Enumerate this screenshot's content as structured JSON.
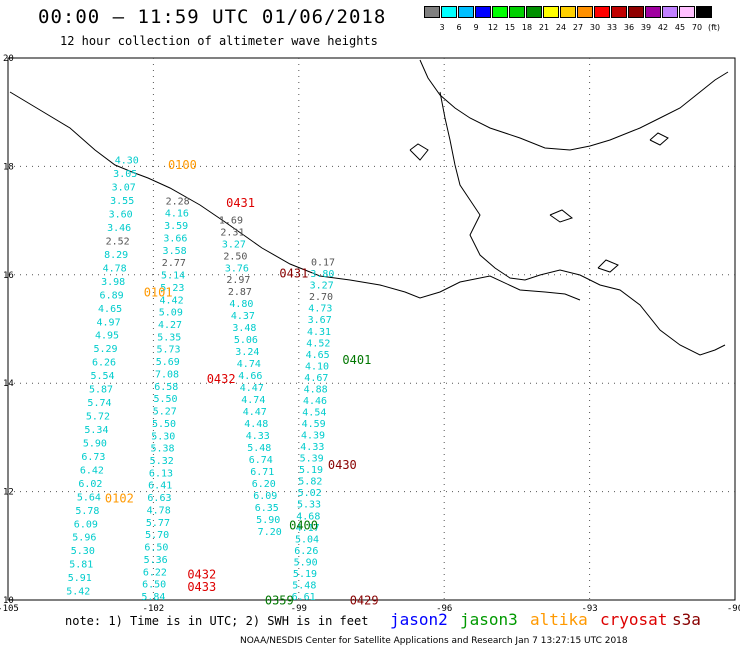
{
  "header": {
    "title": "00:00 – 11:59 UTC 01/06/2018",
    "subtitle": "12 hour collection of altimeter wave heights"
  },
  "colorbar": {
    "colors": [
      "#808080",
      "#00ffff",
      "#00bfff",
      "#0000ff",
      "#00ff00",
      "#00d000",
      "#009000",
      "#ffff00",
      "#ffd000",
      "#ff9000",
      "#ff0000",
      "#c00000",
      "#900000",
      "#a000a0",
      "#c080ff",
      "#ffc0ff",
      "#000000"
    ],
    "labels": [
      "3",
      "6",
      "9",
      "12",
      "15",
      "18",
      "21",
      "24",
      "27",
      "30",
      "33",
      "36",
      "39",
      "42",
      "45",
      "70",
      "(ft)"
    ]
  },
  "map": {
    "lon_ticks": [
      "-105",
      "-102",
      "-99",
      "-96",
      "-93",
      "-90"
    ],
    "lat_ticks": [
      "20",
      "18",
      "16",
      "14",
      "12",
      "10"
    ]
  },
  "passes": [
    {
      "label": "0100",
      "color": "#ff9900",
      "lon": -101.7,
      "lat": 17.95
    },
    {
      "label": "0101",
      "color": "#ff9900",
      "lon": -102.2,
      "lat": 15.6
    },
    {
      "label": "0102",
      "color": "#ff9900",
      "lon": -103.0,
      "lat": 11.8
    },
    {
      "label": "0431",
      "color": "#dd0000",
      "lon": -100.5,
      "lat": 17.25
    },
    {
      "label": "0431",
      "color": "#880000",
      "lon": -99.4,
      "lat": 15.95
    },
    {
      "label": "0432",
      "color": "#dd0000",
      "lon": -100.9,
      "lat": 14.0
    },
    {
      "label": "0432",
      "color": "#dd0000",
      "lon": -101.3,
      "lat": 10.4
    },
    {
      "label": "0433",
      "color": "#dd0000",
      "lon": -101.3,
      "lat": 10.17
    },
    {
      "label": "0401",
      "color": "#007700",
      "lon": -98.1,
      "lat": 14.35
    },
    {
      "label": "0430",
      "color": "#880000",
      "lon": -98.4,
      "lat": 12.42
    },
    {
      "label": "0400",
      "color": "#007700",
      "lon": -99.2,
      "lat": 11.3
    },
    {
      "label": "0359",
      "color": "#007700",
      "lon": -99.7,
      "lat": 9.92
    },
    {
      "label": "0429",
      "color": "#880000",
      "lon": -97.95,
      "lat": 9.92
    }
  ],
  "tracks": [
    {
      "color": "#00cccc",
      "lon0": -102.55,
      "lat0": 18.05,
      "lon1": -103.55,
      "lat1": 10.1,
      "values": [
        "4.30",
        "3.05",
        "3.07",
        "3.55",
        "3.60",
        "3.46",
        "2.52",
        "8.29",
        "4.78",
        "3.98",
        "6.89",
        "4.65",
        "4.97",
        "4.95",
        "5.29",
        "6.26",
        "5.54",
        "5.87",
        "5.74",
        "5.72",
        "5.34",
        "5.90",
        "6.73",
        "6.42",
        "6.02",
        "5.64",
        "5.78",
        "6.09",
        "5.96",
        "5.30",
        "5.81",
        "5.91",
        "5.42"
      ],
      "gray": [
        6
      ]
    },
    {
      "color": "#00cccc",
      "lon0": -101.5,
      "lat0": 17.3,
      "lon1": -102.0,
      "lat1": 10.0,
      "values": [
        "2.28",
        "4.16",
        "3.59",
        "3.66",
        "3.58",
        "2.77",
        "5.14",
        "5.23",
        "4.42",
        "5.09",
        "4.27",
        "5.35",
        "5.73",
        "5.69",
        "7.08",
        "6.58",
        "5.50",
        "5.27",
        "5.50",
        "5.30",
        "5.38",
        "5.32",
        "6.13",
        "6.41",
        "6.63",
        "4.78",
        "5.77",
        "5.70",
        "6.50",
        "5.36",
        "6.22",
        "6.50",
        "5.84"
      ],
      "gray": [
        0,
        5
      ]
    },
    {
      "color": "#00cccc",
      "lon0": -100.4,
      "lat0": 16.95,
      "lon1": -99.6,
      "lat1": 11.2,
      "values": [
        "1.69",
        "2.31",
        "3.27",
        "2.50",
        "3.76",
        "2.97",
        "2.87",
        "4.80",
        "4.37",
        "3.48",
        "5.06",
        "3.24",
        "4.74",
        "4.66",
        "4.47",
        "4.74",
        "4.47",
        "4.48",
        "4.33",
        "5.48",
        "6.74",
        "6.71",
        "6.20",
        "6.09",
        "6.35",
        "5.90",
        "7.20"
      ],
      "gray": [
        0,
        1,
        3,
        5,
        6
      ]
    },
    {
      "color": "#00cccc",
      "lon0": -98.5,
      "lat0": 16.17,
      "lon1": -98.9,
      "lat1": 10.0,
      "values": [
        "0.17",
        "3.80",
        "3.27",
        "2.70",
        "4.73",
        "3.67",
        "4.31",
        "4.52",
        "4.65",
        "4.10",
        "4.67",
        "4.88",
        "4.46",
        "4.54",
        "4.59",
        "4.39",
        "4.33",
        "5.39",
        "5.19",
        "5.82",
        "5.02",
        "5.33",
        "4.68",
        "4.17",
        "5.04",
        "6.26",
        "5.90",
        "5.19",
        "5.48",
        "6.61"
      ],
      "gray": [
        0,
        3
      ]
    }
  ],
  "satellites": [
    {
      "name": "jason2",
      "color": "#0000ff"
    },
    {
      "name": "jason3",
      "color": "#009900"
    },
    {
      "name": "altika",
      "color": "#ff9900"
    },
    {
      "name": "cryosat",
      "color": "#dd0000"
    },
    {
      "name": "s3a",
      "color": "#880000"
    }
  ],
  "footnote": "note: 1) Time is in UTC; 2) SWH is in feet",
  "credit": "NOAA/NESDIS Center for Satellite Applications and Research   Jan  7 13:27:15 UTC 2018"
}
